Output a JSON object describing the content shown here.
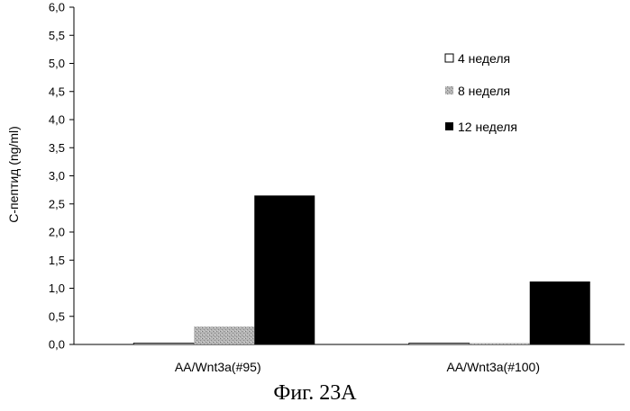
{
  "chart_data": {
    "type": "bar",
    "ylabel": "C-пептид (ng/ml)",
    "ylim": [
      0,
      6
    ],
    "ytick_step": 0.5,
    "yticks": [
      "0,0",
      "0,5",
      "1,0",
      "1,5",
      "2,0",
      "2,5",
      "3,0",
      "3,5",
      "4,0",
      "4,5",
      "5,0",
      "5,5",
      "6,0"
    ],
    "categories": [
      "AA/Wnt3a(#95)",
      "AA/Wnt3a(#100)"
    ],
    "series": [
      {
        "name": "4 неделя",
        "values": [
          0.02,
          0.02
        ],
        "color": "#ffffff",
        "pattern": "outline"
      },
      {
        "name": "8 неделя",
        "values": [
          0.32,
          0.02
        ],
        "color": "#a8a8a8",
        "pattern": "speckle"
      },
      {
        "name": "12 неделя",
        "values": [
          2.65,
          1.12
        ],
        "color": "#000000",
        "pattern": "solid"
      }
    ],
    "legend_position": "top-right",
    "grid": false
  },
  "caption": "Фиг. 23A"
}
